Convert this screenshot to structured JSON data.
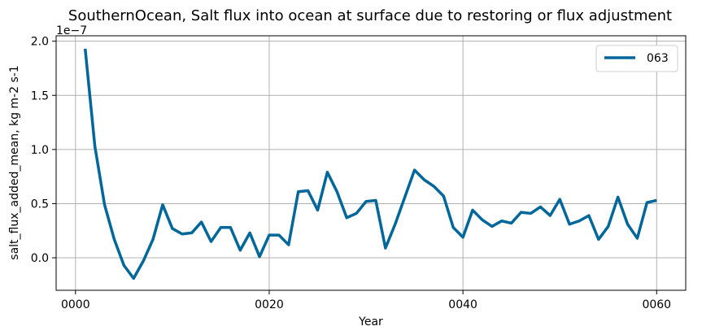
{
  "chart_data": {
    "type": "line",
    "title": "SouthernOcean, Salt flux into ocean at surface due to restoring or flux adjustment",
    "xlabel": "Year",
    "ylabel": "salt_flux_added_mean, kg m-2 s-1",
    "y_offset_label": "1e−7",
    "xlim": [
      -2,
      63
    ],
    "ylim": [
      -3e-08,
      2.05e-07
    ],
    "x_ticks": [
      0,
      20,
      40,
      60
    ],
    "x_tick_labels": [
      "0000",
      "0020",
      "0040",
      "0060"
    ],
    "y_ticks": [
      0,
      5e-08,
      1e-07,
      1.5e-07,
      2e-07
    ],
    "y_tick_labels": [
      "0.0",
      "0.5",
      "1.0",
      "1.5",
      "2.0"
    ],
    "grid": true,
    "legend_position": "top-right",
    "series": [
      {
        "name": "063",
        "color": "#00679a",
        "x": [
          1,
          2,
          3,
          4,
          5,
          6,
          7,
          8,
          9,
          10,
          11,
          12,
          13,
          14,
          15,
          16,
          17,
          18,
          19,
          20,
          21,
          22,
          23,
          24,
          25,
          26,
          27,
          28,
          29,
          30,
          31,
          32,
          33,
          34,
          35,
          36,
          37,
          38,
          39,
          40,
          41,
          42,
          43,
          44,
          45,
          46,
          47,
          48,
          49,
          50,
          51,
          52,
          53,
          54,
          55,
          56,
          57,
          58,
          59,
          60
        ],
        "values": [
          1.93e-07,
          1.03e-07,
          4.9e-08,
          1.7e-08,
          -7e-09,
          -1.9e-08,
          -3e-09,
          1.7e-08,
          4.9e-08,
          2.7e-08,
          2.2e-08,
          2.3e-08,
          3.3e-08,
          1.5e-08,
          2.8e-08,
          2.8e-08,
          7e-09,
          2.3e-08,
          1e-09,
          2.1e-08,
          2.1e-08,
          1.2e-08,
          6.1e-08,
          6.2e-08,
          4.4e-08,
          7.9e-08,
          6.1e-08,
          3.7e-08,
          4.1e-08,
          5.2e-08,
          5.3e-08,
          9e-09,
          3.1e-08,
          5.6e-08,
          8.1e-08,
          7.2e-08,
          6.6e-08,
          5.7e-08,
          2.8e-08,
          1.9e-08,
          4.4e-08,
          3.5e-08,
          2.9e-08,
          3.4e-08,
          3.2e-08,
          4.2e-08,
          4.1e-08,
          4.7e-08,
          3.9e-08,
          5.4e-08,
          3.1e-08,
          3.4e-08,
          3.9e-08,
          1.7e-08,
          2.9e-08,
          5.6e-08,
          3.1e-08,
          1.8e-08,
          5.1e-08,
          5.3e-08
        ]
      }
    ]
  }
}
